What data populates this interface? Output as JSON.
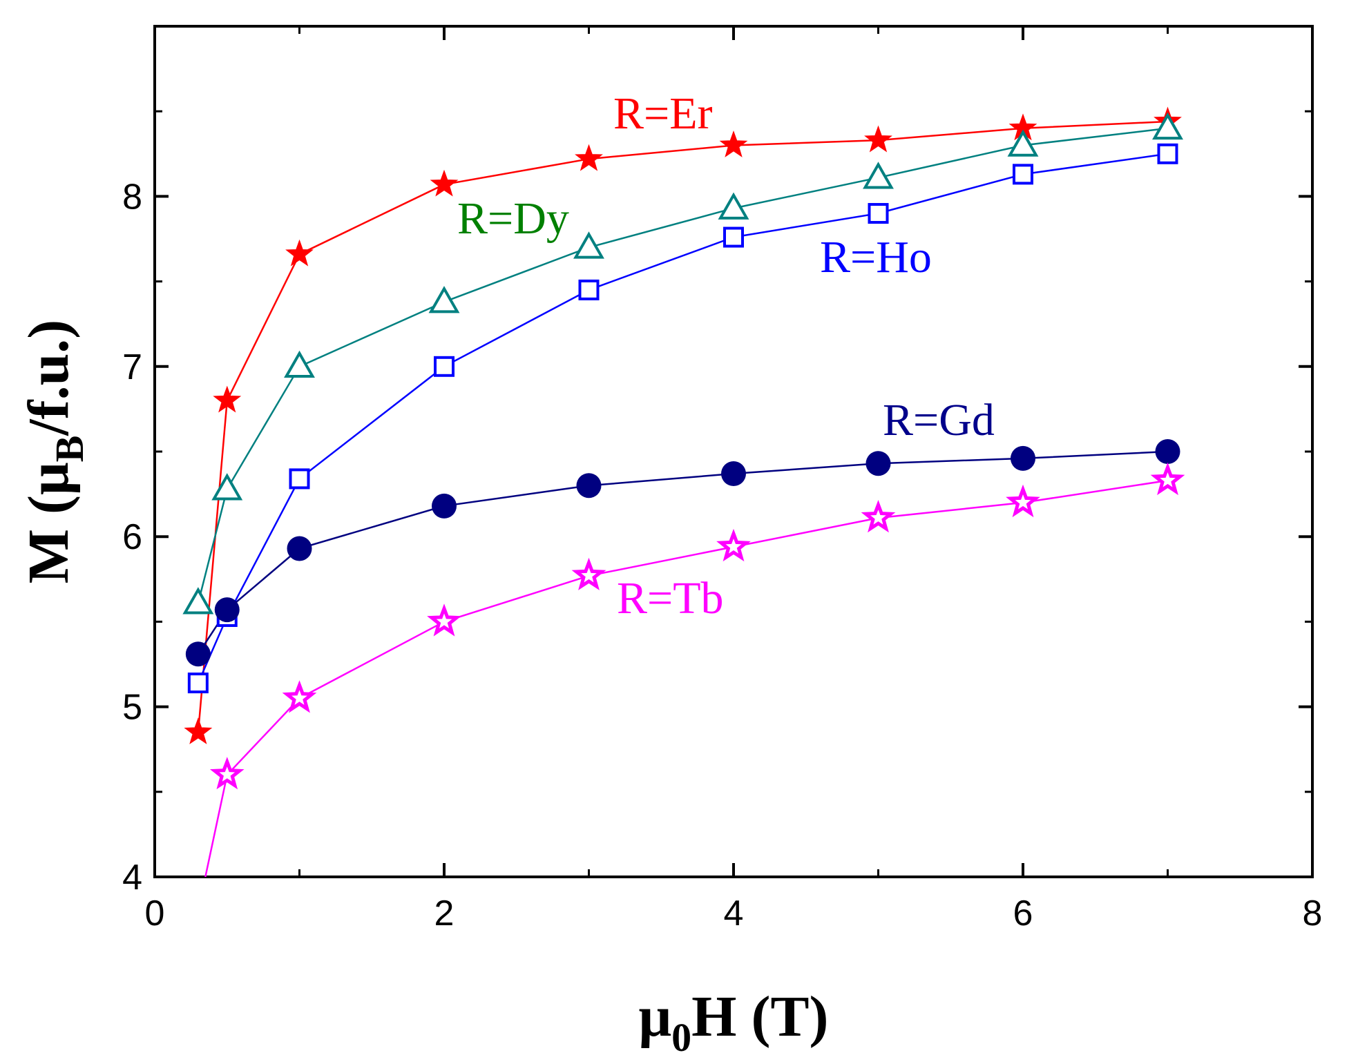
{
  "chart_data": {
    "type": "line",
    "xlabel": {
      "prefix": "μ",
      "sub": "0",
      "suffix": "H (T)"
    },
    "ylabel": {
      "prefix": "M (μ",
      "sub": "B",
      "suffix": "/f.u.)"
    },
    "xlim": [
      0,
      8
    ],
    "ylim": [
      4,
      9
    ],
    "xticks": [
      0,
      2,
      4,
      6,
      8
    ],
    "yticks": [
      4,
      5,
      6,
      7,
      8
    ],
    "grid": false,
    "series": [
      {
        "name": "R=Er",
        "color": "#ff0000",
        "marker": "filled-star",
        "x": [
          0.3,
          0.5,
          1,
          2,
          3,
          4,
          5,
          6,
          7
        ],
        "values": [
          4.85,
          6.8,
          7.66,
          8.07,
          8.22,
          8.3,
          8.33,
          8.4,
          8.44
        ]
      },
      {
        "name": "R=Dy",
        "color": "#008080",
        "label_color": "#008000",
        "marker": "open-triangle",
        "x": [
          0.3,
          0.5,
          1,
          2,
          3,
          4,
          5,
          6,
          7
        ],
        "values": [
          5.61,
          6.28,
          7.0,
          7.38,
          7.7,
          7.93,
          8.11,
          8.3,
          8.4
        ]
      },
      {
        "name": "R=Ho",
        "color": "#0000ff",
        "marker": "open-square",
        "x": [
          0.3,
          0.5,
          1,
          2,
          3,
          4,
          5,
          6,
          7
        ],
        "values": [
          5.14,
          5.53,
          6.34,
          7.0,
          7.45,
          7.76,
          7.9,
          8.13,
          8.25
        ]
      },
      {
        "name": "R=Gd",
        "color": "#000080",
        "label_color": "#00008b",
        "marker": "filled-circle",
        "x": [
          0.3,
          0.5,
          1,
          2,
          3,
          4,
          5,
          6,
          7
        ],
        "values": [
          5.31,
          5.57,
          5.93,
          6.18,
          6.3,
          6.37,
          6.43,
          6.46,
          6.5
        ]
      },
      {
        "name": "R=Tb",
        "color": "#ff00ff",
        "marker": "open-star",
        "x": [
          0.35,
          0.5,
          1,
          2,
          3,
          4,
          5,
          6,
          7
        ],
        "values": [
          4.0,
          4.6,
          5.05,
          5.5,
          5.77,
          5.94,
          6.11,
          6.2,
          6.33
        ],
        "marker_from": 1
      }
    ]
  }
}
